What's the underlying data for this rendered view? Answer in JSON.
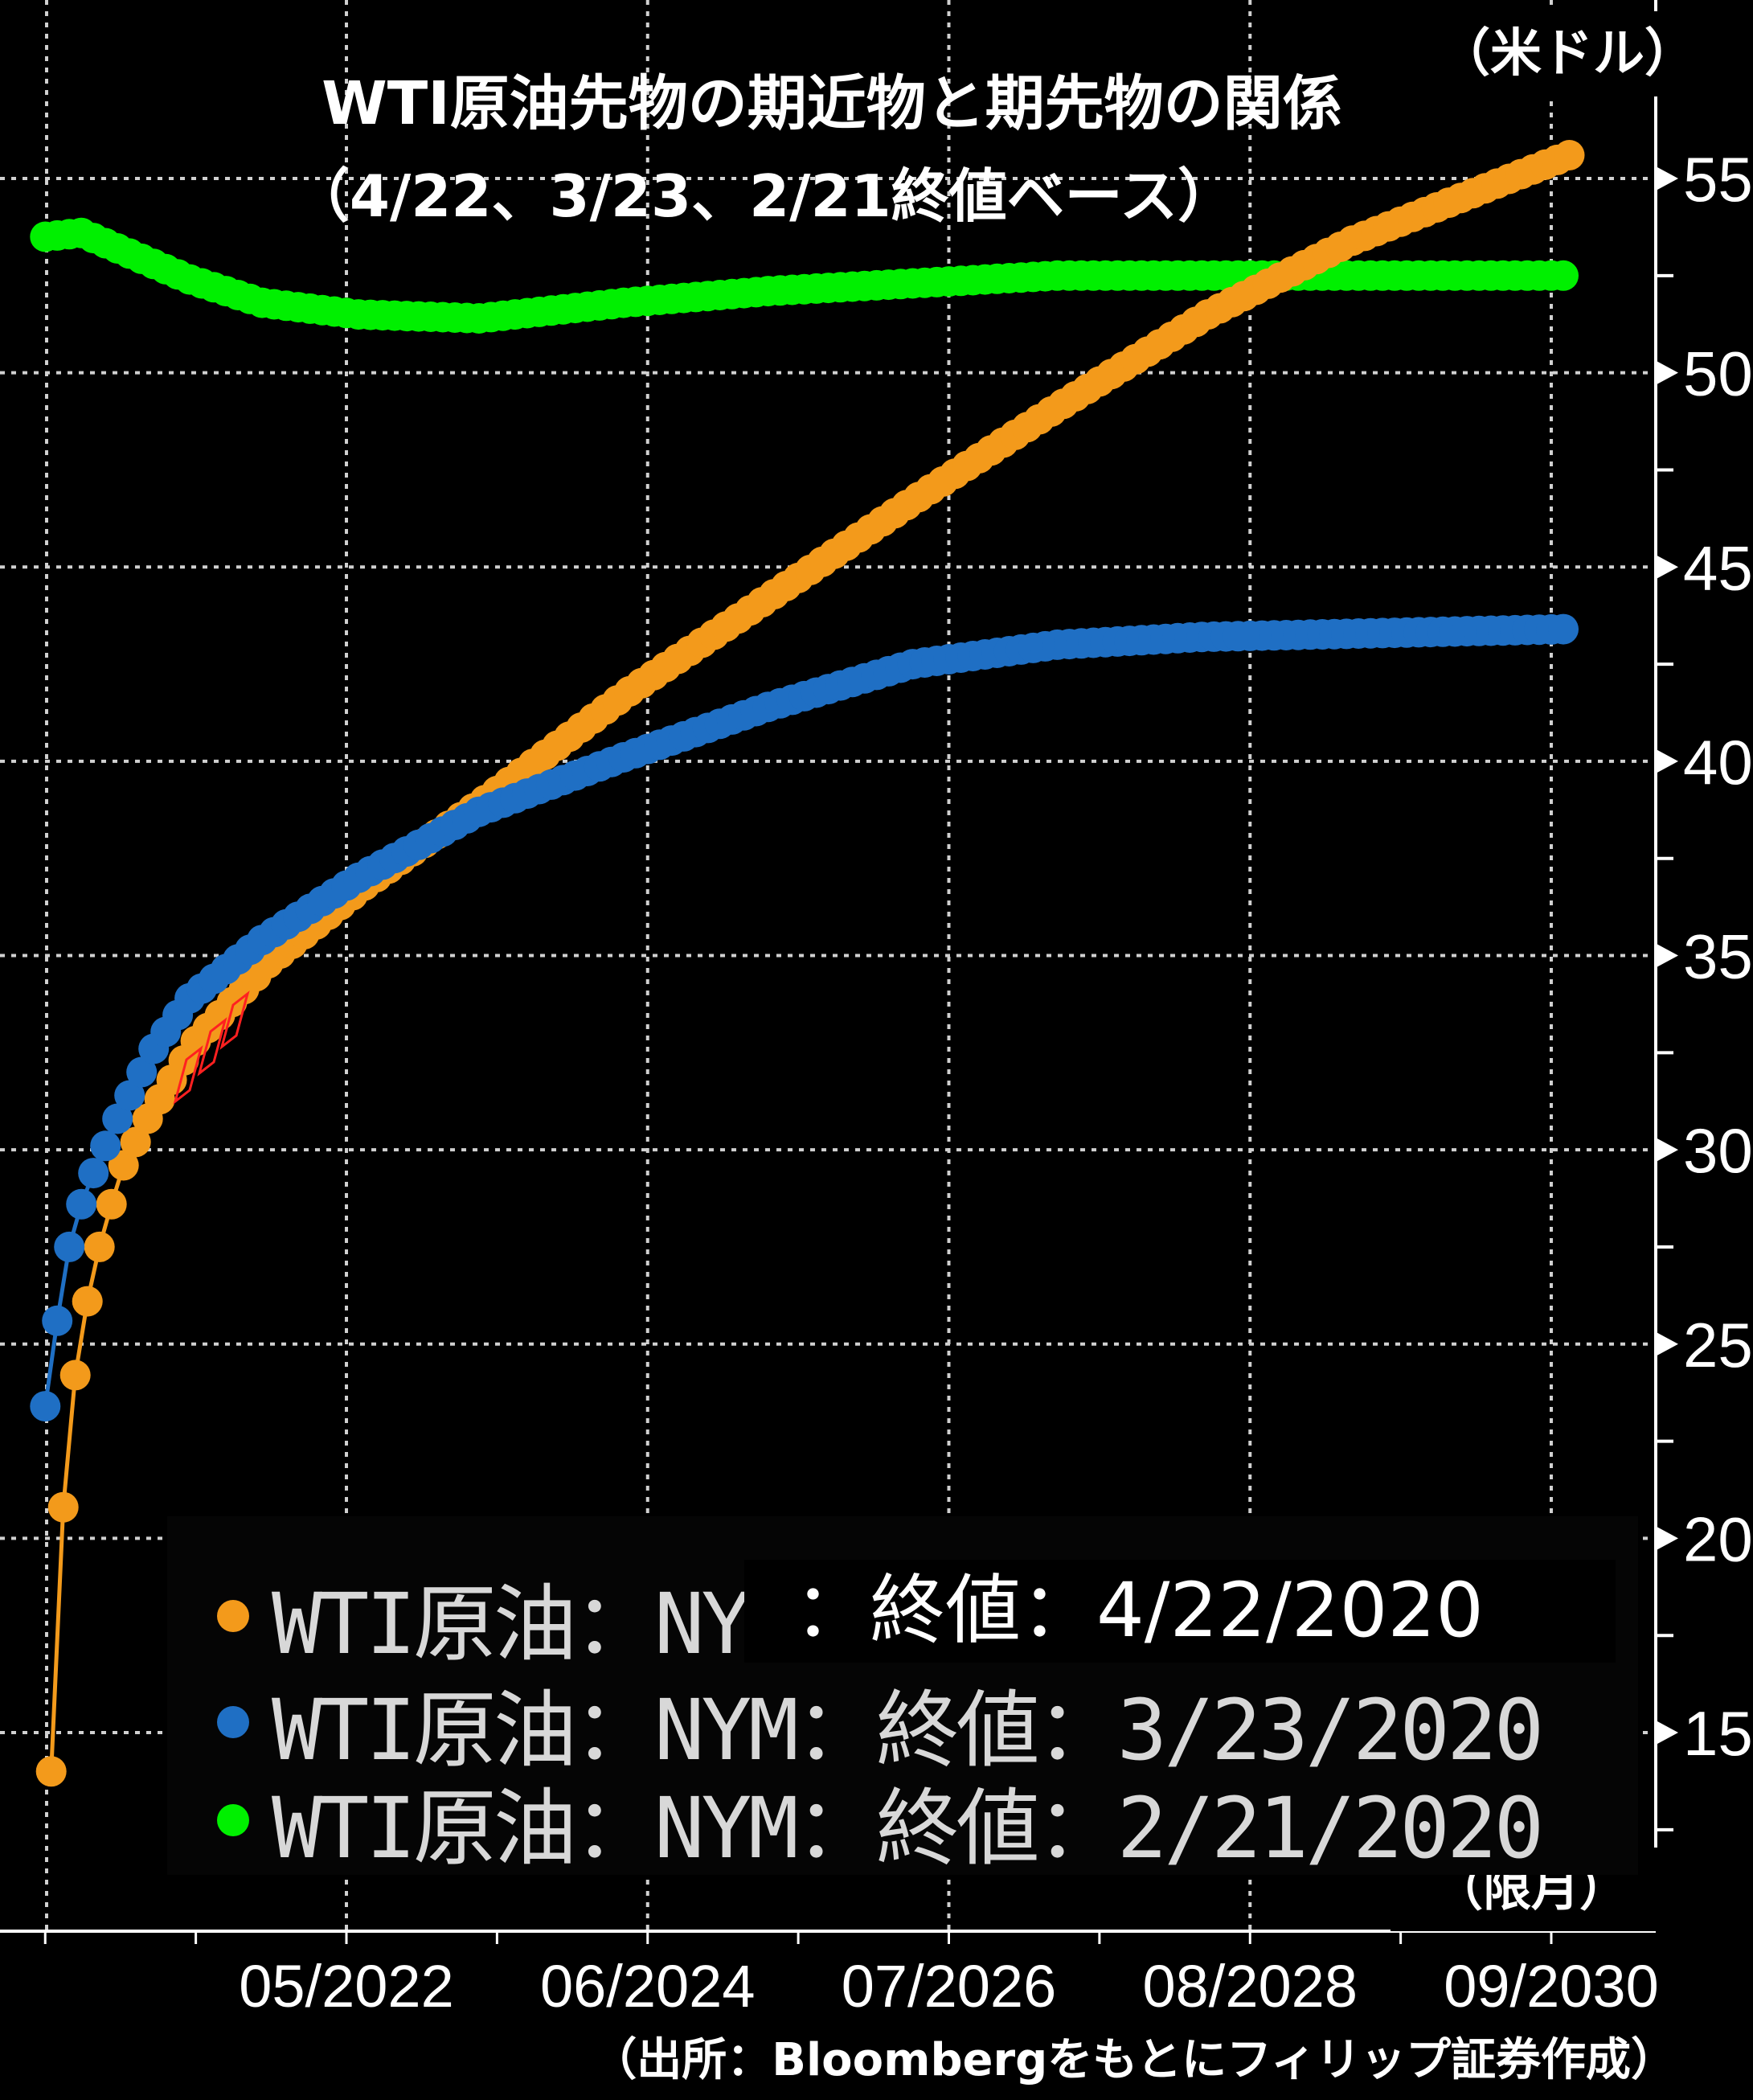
{
  "title_line1": "WTI原油先物の期近物と期先物の関係",
  "title_line2": "（4/22、3/23、2/21終値ベース）",
  "y_unit": "（米ドル）",
  "x_unit": "（限月）",
  "source": "（出所：Bloombergをもとにフィリップ証券作成）",
  "legend_highlight": "：終値：4/22/2020",
  "colors": {
    "background": "#000000",
    "grid": "#d0d0d0",
    "series_0422": "#f39a1b",
    "series_0323": "#1f6fc4",
    "series_0221": "#00f000",
    "marker_red": "#ff2020"
  },
  "chart_data": {
    "type": "scatter",
    "title": "WTI原油先物の期近物と期先物の関係",
    "x_tick_labels": [
      "05/2022",
      "06/2024",
      "07/2026",
      "08/2028",
      "09/2030"
    ],
    "y_ticks": [
      "15",
      "20",
      "25",
      "30",
      "35",
      "40",
      "45",
      "50",
      "55"
    ],
    "y_range": [
      10,
      57.5
    ],
    "x_range_months_from_2020_04": [
      -1,
      132
    ],
    "grid": true,
    "legend_position": "bottom-left",
    "series": [
      {
        "name": "WTI原油：NYM",
        "legend_label": "WTI原油：NYM",
        "color_key": "series_0422",
        "first_contract": "06/2020",
        "last_contract": "12/2030",
        "anchor_points": [
          [
            0,
            14.0
          ],
          [
            1,
            20.8
          ],
          [
            2,
            24.2
          ],
          [
            3,
            26.1
          ],
          [
            4,
            27.5
          ],
          [
            5,
            28.6
          ],
          [
            6,
            29.6
          ],
          [
            8,
            30.8
          ],
          [
            12,
            32.8
          ],
          [
            18,
            34.8
          ],
          [
            26,
            36.8
          ],
          [
            36,
            39.0
          ],
          [
            48,
            41.8
          ],
          [
            60,
            44.3
          ],
          [
            72,
            46.8
          ],
          [
            84,
            49.2
          ],
          [
            96,
            51.5
          ],
          [
            108,
            53.4
          ],
          [
            126,
            55.6
          ]
        ]
      },
      {
        "name": "WTI原油：NYM：終値：3/23/2020",
        "legend_label": "WTI原油：NYM：終値：3/23/2020",
        "color_key": "series_0323",
        "first_contract": "05/2020",
        "last_contract": "12/2030",
        "anchor_points": [
          [
            0,
            23.4
          ],
          [
            1,
            25.6
          ],
          [
            2,
            27.5
          ],
          [
            3,
            28.6
          ],
          [
            4,
            29.4
          ],
          [
            6,
            30.8
          ],
          [
            9,
            32.6
          ],
          [
            12,
            33.9
          ],
          [
            18,
            35.4
          ],
          [
            26,
            37.0
          ],
          [
            36,
            38.7
          ],
          [
            48,
            40.1
          ],
          [
            60,
            41.4
          ],
          [
            72,
            42.5
          ],
          [
            84,
            43.0
          ],
          [
            96,
            43.2
          ],
          [
            126,
            43.4
          ]
        ]
      },
      {
        "name": "WTI原油：NYM：終値：2/21/2020",
        "legend_label": "WTI原油：NYM：終値：2/21/2020",
        "color_key": "series_0221",
        "first_contract": "04/2020",
        "last_contract": "12/2030",
        "anchor_points": [
          [
            0,
            53.5
          ],
          [
            3,
            53.6
          ],
          [
            6,
            53.2
          ],
          [
            12,
            52.4
          ],
          [
            18,
            51.8
          ],
          [
            26,
            51.5
          ],
          [
            36,
            51.4
          ],
          [
            48,
            51.8
          ],
          [
            60,
            52.1
          ],
          [
            72,
            52.3
          ],
          [
            84,
            52.5
          ],
          [
            96,
            52.5
          ],
          [
            126,
            52.5
          ]
        ]
      }
    ]
  }
}
